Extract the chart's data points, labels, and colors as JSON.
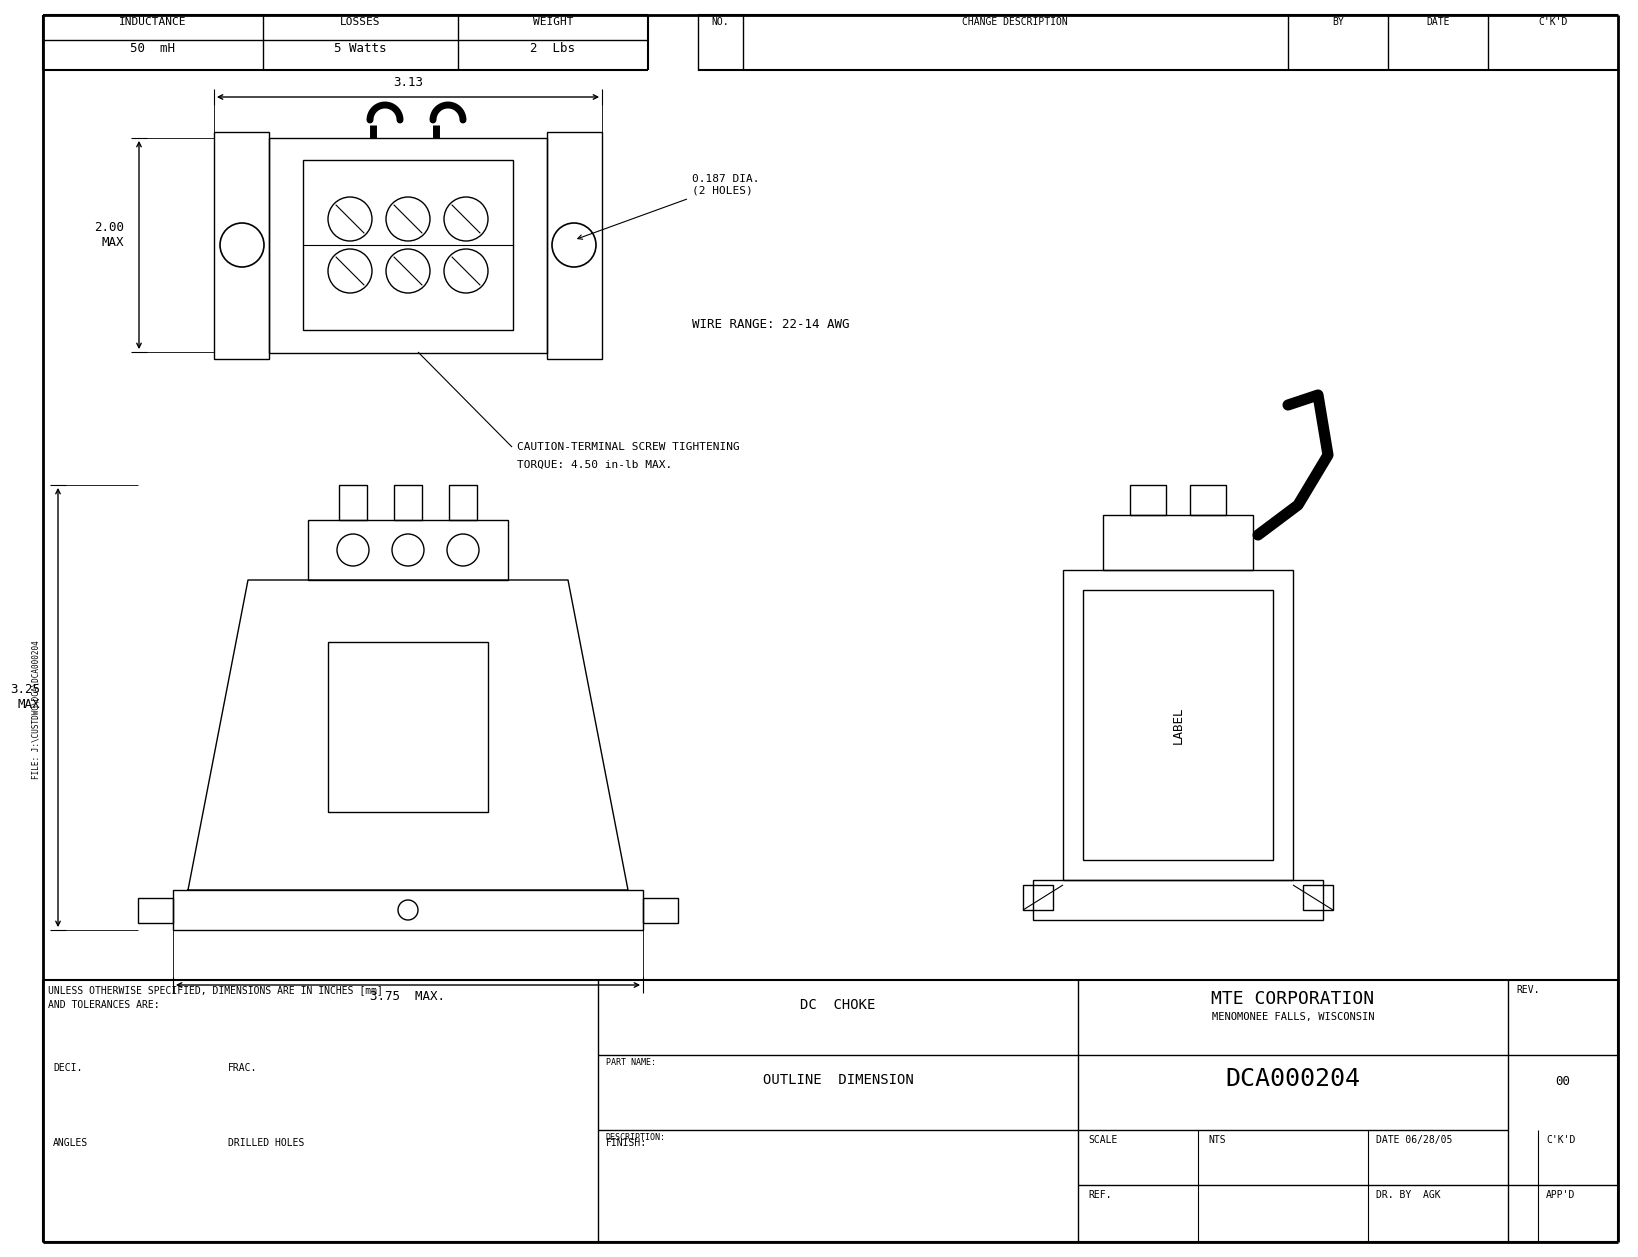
{
  "bg_color": "#ffffff",
  "line_color": "#000000",
  "title_company": "MTE CORPORATION",
  "title_location": "MENOMONEE FALLS, WISCONSIN",
  "part_name_label": "PART NAME:",
  "part_name": "DC  CHOKE",
  "description_label": "DESCRIPTION:",
  "description": "OUTLINE  DIMENSION",
  "part_number": "DCA000204",
  "rev_label": "REV.",
  "rev_value": "00",
  "scale_label": "SCALE",
  "scale_value": "NTS",
  "date_label": "DATE 06/28/05",
  "ckd_top_label": "C'K'D",
  "ref_label": "REF.",
  "dr_by_label": "DR. BY",
  "dr_by_value": "AGK",
  "appd_label": "APP'D",
  "inductance_label": "INDUCTANCE",
  "inductance_value": "50  mH",
  "losses_label": "LOSSES",
  "losses_value": "5 Watts",
  "weight_label": "WEIGHT",
  "weight_value": "2  Lbs",
  "no_label": "NO.",
  "change_desc_label": "CHANGE DESCRIPTION",
  "by_label": "BY",
  "date_col_label": "DATE",
  "ckd_col_label": "C'K'D",
  "tolerance_text1": "UNLESS OTHERWISE SPECIFIED, DIMENSIONS ARE IN INCHES [mm]",
  "tolerance_text2": "AND TOLERANCES ARE:",
  "deci_label": "DECI.",
  "frac_label": "FRAC.",
  "angles_label": "ANGLES",
  "drilled_label": "DRILLED HOLES",
  "finish_label": "FINISH:",
  "file_label": "FILE: J:\\CUSTDWG\\DCA\\DCA000204",
  "dim_313": "3.13",
  "dim_200_max": "2.00\nMAX",
  "dim_325_max": "3.25\nMAX",
  "dim_375_max": "3.75  MAX.",
  "dim_0187": "0.187 DIA.\n(2 HOLES)",
  "wire_range": "WIRE RANGE: 22-14 AWG",
  "caution_line1": "CAUTION-TERMINAL SCREW TIGHTENING",
  "caution_line2": "TORQUE: 4.50 in-lb MAX.",
  "label_text": "LABEL"
}
